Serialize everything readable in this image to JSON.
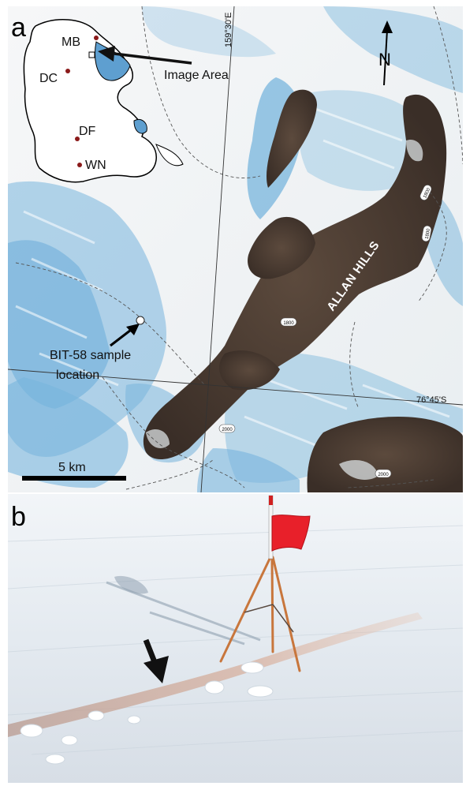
{
  "panel_a": {
    "label": "a",
    "inset": {
      "stations": [
        "MB",
        "DC",
        "DF",
        "WN"
      ],
      "pointer_label": "Image Area"
    },
    "north_arrow": "N",
    "graticule": {
      "longitude": "159°30'E",
      "latitude": "76°45'S"
    },
    "feature_label": "ALLAN HILLS",
    "contours": [
      "1800",
      "1800",
      "1800",
      "2000",
      "2000"
    ],
    "sample_label_line1": "BIT-58 sample",
    "sample_label_line2": "location",
    "scale_bar": "5 km",
    "colors": {
      "ice": "#f1f3f4",
      "blue_ice": "#5ea8d6",
      "rock": "#4a3a30",
      "sample_dot": "#ffffff"
    }
  },
  "panel_b": {
    "label": "b",
    "colors": {
      "flag": "#e8202a",
      "tripod": "#c8763c",
      "snow": "#e9eef3"
    }
  }
}
